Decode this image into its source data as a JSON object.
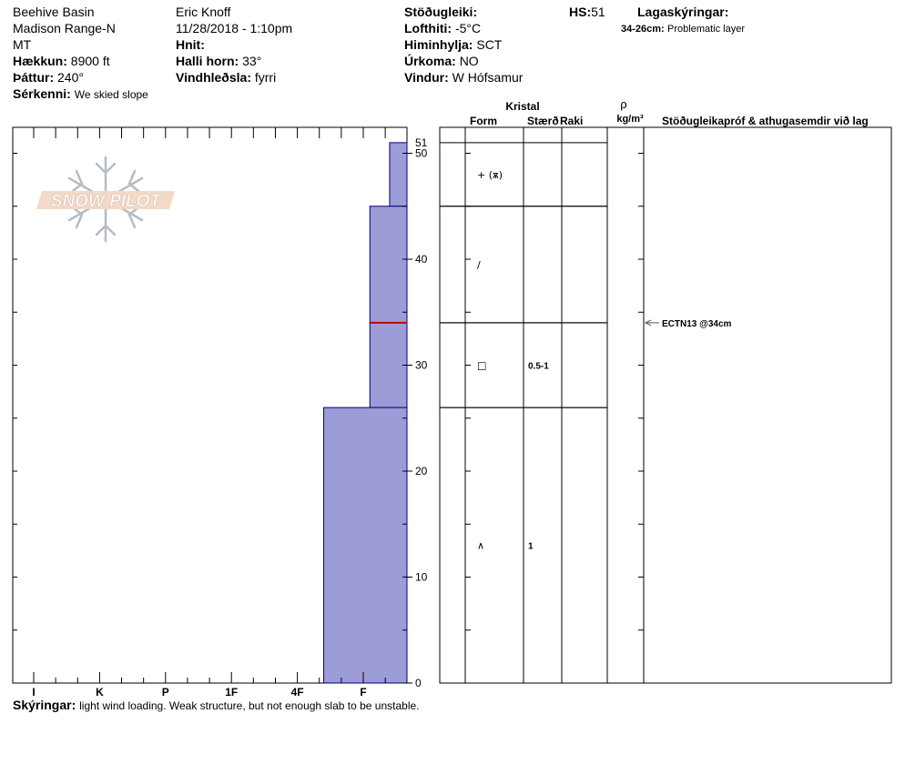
{
  "header": {
    "location": "Beehive Basin",
    "range": "Madison Range-N",
    "state": "MT",
    "elevation_label": "Hækkun:",
    "elevation": "8900 ft",
    "aspect_label": "Þáttur:",
    "aspect": "240°",
    "features_label": "Sérkenni:",
    "features": "We skied slope",
    "observer": "Eric Knoff",
    "datetime": "11/28/2018 - 1:10pm",
    "coords_label": "Hnit:",
    "slope_label": "Halli horn:",
    "slope": "33°",
    "wind_loading_label": "Vindhleðsla:",
    "wind_loading": "fyrri",
    "stability_label": "Stöðugleiki:",
    "stability": "",
    "air_temp_label": "Lofthiti:",
    "air_temp": "-5°C",
    "sky_label": "Himinhylja:",
    "sky": "SCT",
    "precip_label": "Úrkoma:",
    "precip": "NO",
    "wind_label": "Vindur:",
    "wind": "W Hófsamur",
    "hs_label": "HS:",
    "hs": "51",
    "layer_notes_label": "Lagaskýringar:",
    "layer_note_range": "34-26cm:",
    "layer_note_text": "Problematic layer"
  },
  "logo": {
    "text": "SNOW PILOT"
  },
  "table_headers": {
    "crystal": "Kristal",
    "form": "Form",
    "size": "Stærð",
    "moisture": "Raki",
    "density_symbol": "ρ",
    "density_unit": "kg/m³",
    "tests": "Stöðugleikapróf & athugasemdir við lag"
  },
  "footer": {
    "notes_label": "Skýringar:",
    "notes": "light wind loading. Weak structure, but not enough slab to be unstable."
  },
  "chart_data": {
    "type": "bar",
    "orientation": "horizontal",
    "description_axis_y": "height (cm)",
    "ylim": [
      0,
      51
    ],
    "y_major_ticks": [
      0,
      10,
      20,
      30,
      40,
      50
    ],
    "y_top_label": "51",
    "hardness_categories": [
      "I",
      "K",
      "P",
      "1F",
      "4F",
      "F"
    ],
    "layers": [
      {
        "bottom": 45,
        "top": 51,
        "hardness": "F+",
        "form_symbol": "+ (ѫ)",
        "size": ""
      },
      {
        "bottom": 34,
        "top": 45,
        "hardness": "4F+",
        "form_symbol": "/",
        "size": ""
      },
      {
        "bottom": 26,
        "top": 34,
        "hardness": "4F+",
        "form_symbol": "□",
        "size": "0.5-1"
      },
      {
        "bottom": 0,
        "top": 26,
        "hardness": "1F+",
        "form_symbol": "∧",
        "size": "1"
      }
    ],
    "layer_hardness_index": [
      5.4,
      5.1,
      5.1,
      4.4
    ],
    "problem_layer_height": 34,
    "tests": [
      {
        "height": 34,
        "label": "ECTN13 @34cm"
      }
    ],
    "colors": {
      "layer_fill": "#9c9cd6",
      "layer_stroke": "#000080",
      "problem_line": "#cc0000"
    }
  }
}
